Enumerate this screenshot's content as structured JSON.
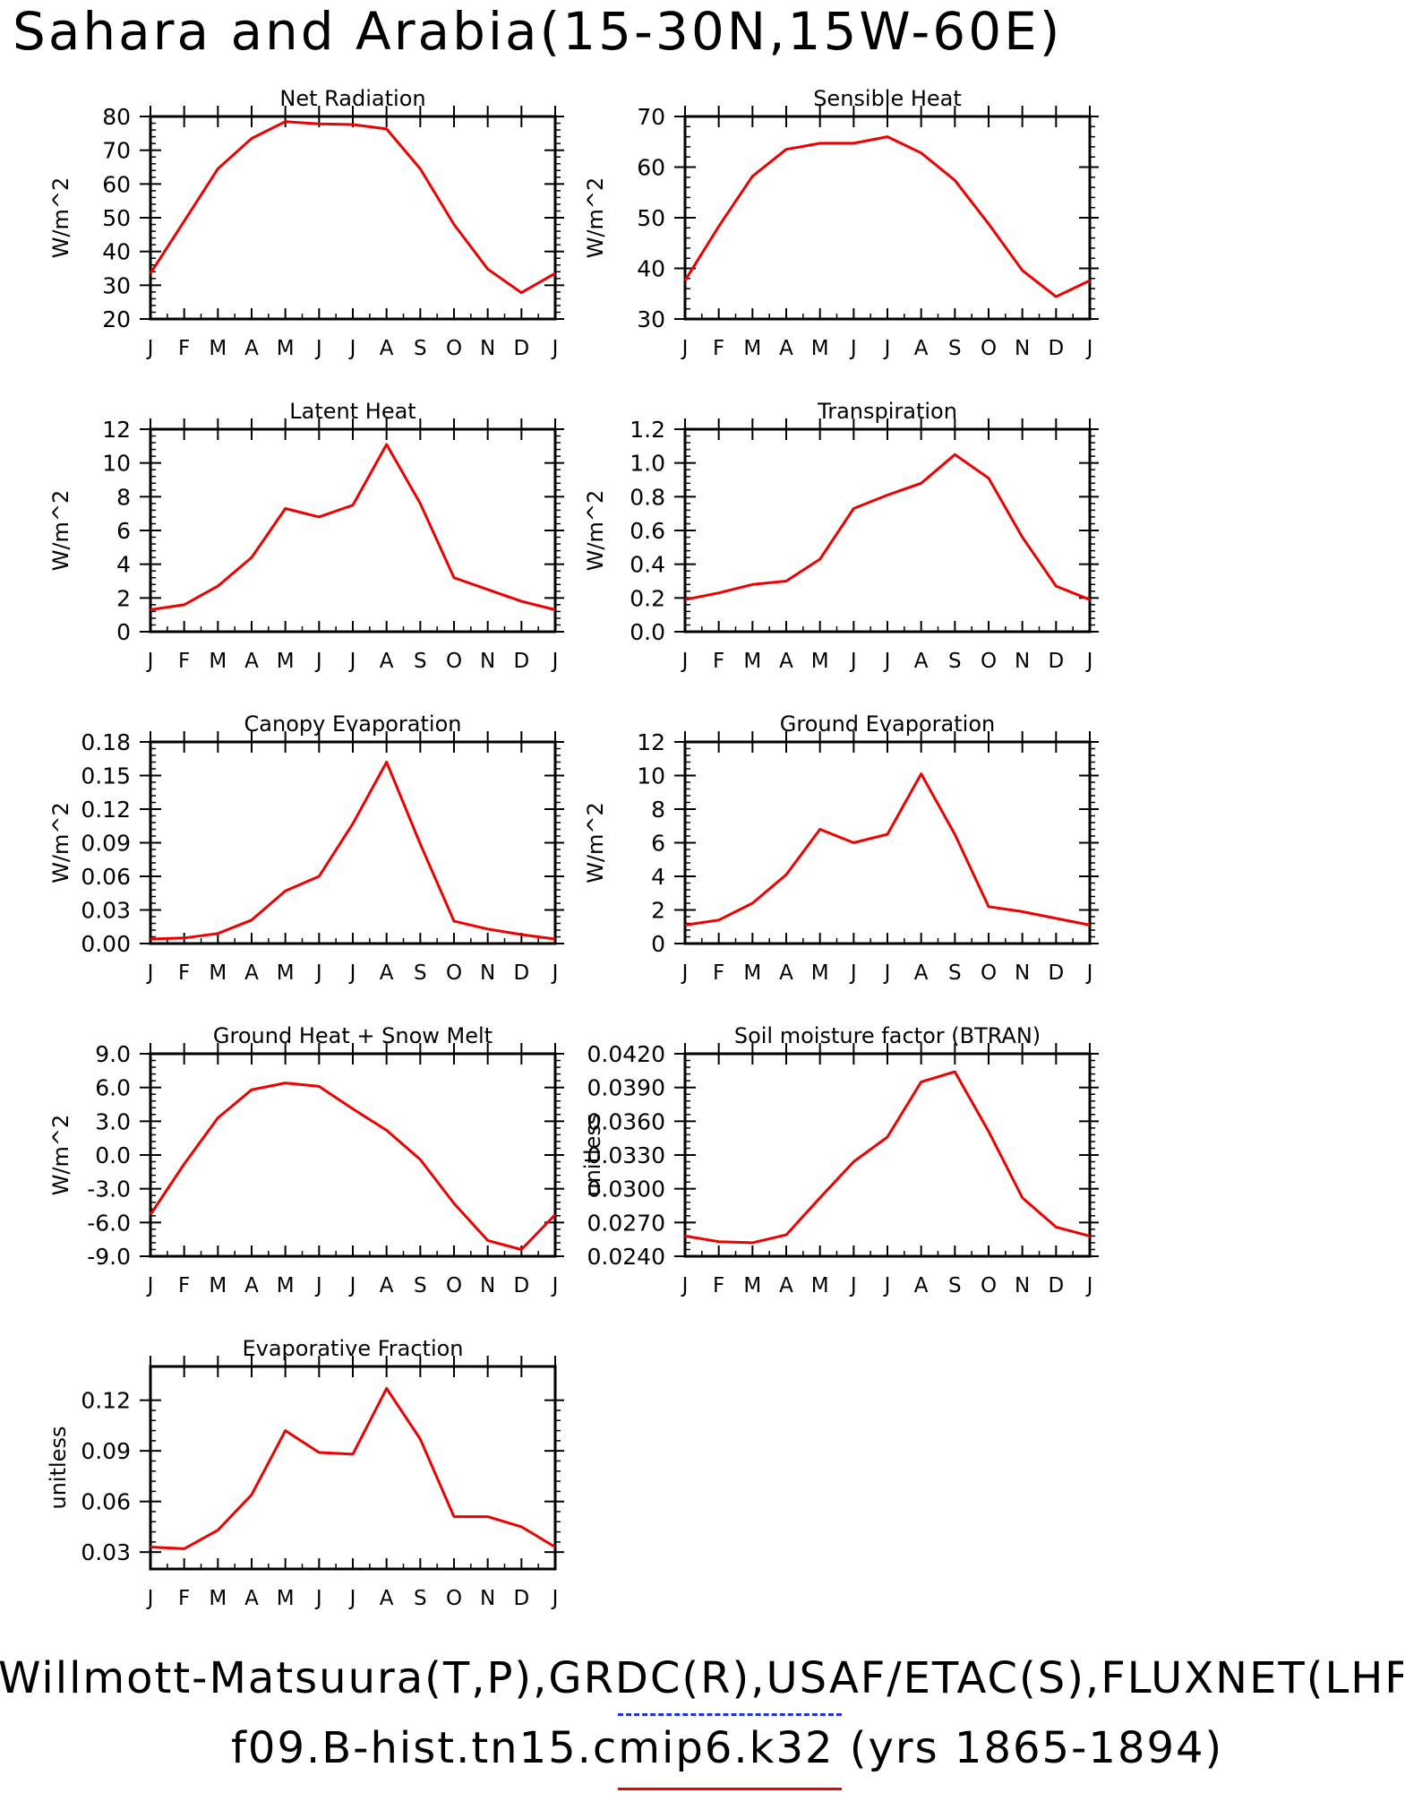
{
  "title": "Sahara and Arabia(15-30N,15W-60E)",
  "footer": {
    "line1": "Willmott-Matsuura(T,P),GRDC(R),USAF/ETAC(S),FLUXNET(LHF,GPP)",
    "line2": "f09.B-hist.tn15.cmip6.k32 (yrs 1865-1894)"
  },
  "colors": {
    "series": "#ee0000",
    "obs_legend": "#2233dd"
  },
  "chart_data": [
    {
      "type": "line",
      "title": "Net Radiation",
      "ylabel": "W/m^2",
      "x": [
        "J",
        "F",
        "M",
        "A",
        "M",
        "J",
        "J",
        "A",
        "S",
        "O",
        "N",
        "D",
        "J"
      ],
      "ylim": [
        20,
        80
      ],
      "yticks": [
        20,
        30,
        40,
        50,
        60,
        70,
        80
      ],
      "yticklabels": [
        "20",
        "30",
        "40",
        "50",
        "60",
        "70",
        "80"
      ],
      "values": [
        33.5,
        49,
        64.5,
        73.5,
        78.5,
        77.8,
        77.6,
        76.3,
        64.5,
        48,
        34.8,
        27.8,
        33.5
      ]
    },
    {
      "type": "line",
      "title": "Sensible Heat",
      "ylabel": "W/m^2",
      "x": [
        "J",
        "F",
        "M",
        "A",
        "M",
        "J",
        "J",
        "A",
        "S",
        "O",
        "N",
        "D",
        "J"
      ],
      "ylim": [
        30,
        70
      ],
      "yticks": [
        30,
        40,
        50,
        60,
        70
      ],
      "yticklabels": [
        "30",
        "40",
        "50",
        "60",
        "70"
      ],
      "values": [
        37.6,
        48.3,
        58.2,
        63.5,
        64.7,
        64.7,
        66.0,
        62.8,
        57.4,
        48.8,
        39.6,
        34.4,
        37.6
      ]
    },
    {
      "type": "line",
      "title": "Latent Heat",
      "ylabel": "W/m^2",
      "x": [
        "J",
        "F",
        "M",
        "A",
        "M",
        "J",
        "J",
        "A",
        "S",
        "O",
        "N",
        "D",
        "J"
      ],
      "ylim": [
        0,
        12
      ],
      "yticks": [
        0,
        2,
        4,
        6,
        8,
        10,
        12
      ],
      "yticklabels": [
        "0",
        "2",
        "4",
        "6",
        "8",
        "10",
        "12"
      ],
      "values": [
        1.3,
        1.6,
        2.7,
        4.4,
        7.3,
        6.8,
        7.5,
        11.1,
        7.6,
        3.2,
        2.5,
        1.8,
        1.3
      ]
    },
    {
      "type": "line",
      "title": "Transpiration",
      "ylabel": "W/m^2",
      "x": [
        "J",
        "F",
        "M",
        "A",
        "M",
        "J",
        "J",
        "A",
        "S",
        "O",
        "N",
        "D",
        "J"
      ],
      "ylim": [
        0,
        1.2
      ],
      "yticks": [
        0,
        0.2,
        0.4,
        0.6,
        0.8,
        1.0,
        1.2
      ],
      "yticklabels": [
        "0.0",
        "0.2",
        "0.4",
        "0.6",
        "0.8",
        "1.0",
        "1.2"
      ],
      "values": [
        0.19,
        0.23,
        0.28,
        0.3,
        0.43,
        0.73,
        0.81,
        0.88,
        1.05,
        0.91,
        0.56,
        0.27,
        0.19
      ]
    },
    {
      "type": "line",
      "title": "Canopy Evaporation",
      "ylabel": "W/m^2",
      "x": [
        "J",
        "F",
        "M",
        "A",
        "M",
        "J",
        "J",
        "A",
        "S",
        "O",
        "N",
        "D",
        "J"
      ],
      "ylim": [
        0,
        0.18
      ],
      "yticks": [
        0,
        0.03,
        0.06,
        0.09,
        0.12,
        0.15,
        0.18
      ],
      "yticklabels": [
        "0.00",
        "0.03",
        "0.06",
        "0.09",
        "0.12",
        "0.15",
        "0.18"
      ],
      "values": [
        0.004,
        0.005,
        0.009,
        0.021,
        0.047,
        0.06,
        0.107,
        0.162,
        0.089,
        0.02,
        0.013,
        0.008,
        0.004
      ]
    },
    {
      "type": "line",
      "title": "Ground Evaporation",
      "ylabel": "W/m^2",
      "x": [
        "J",
        "F",
        "M",
        "A",
        "M",
        "J",
        "J",
        "A",
        "S",
        "O",
        "N",
        "D",
        "J"
      ],
      "ylim": [
        0,
        12
      ],
      "yticks": [
        0,
        2,
        4,
        6,
        8,
        10,
        12
      ],
      "yticklabels": [
        "0",
        "2",
        "4",
        "6",
        "8",
        "10",
        "12"
      ],
      "values": [
        1.1,
        1.4,
        2.4,
        4.1,
        6.8,
        6.0,
        6.5,
        10.1,
        6.5,
        2.2,
        1.9,
        1.5,
        1.1
      ]
    },
    {
      "type": "line",
      "title": "Ground Heat + Snow Melt",
      "ylabel": "W/m^2",
      "x": [
        "J",
        "F",
        "M",
        "A",
        "M",
        "J",
        "J",
        "A",
        "S",
        "O",
        "N",
        "D",
        "J"
      ],
      "ylim": [
        -9,
        9
      ],
      "yticks": [
        -9,
        -6,
        -3,
        0,
        3,
        6,
        9
      ],
      "yticklabels": [
        "-9.0",
        "-6.0",
        "-3.0",
        "0.0",
        "3.0",
        "6.0",
        "9.0"
      ],
      "values": [
        -5.3,
        -0.8,
        3.3,
        5.8,
        6.4,
        6.1,
        4.1,
        2.2,
        -0.4,
        -4.3,
        -7.6,
        -8.4,
        -5.3
      ]
    },
    {
      "type": "line",
      "title": "Soil moisture factor (BTRAN)",
      "ylabel": "unitless",
      "x": [
        "J",
        "F",
        "M",
        "A",
        "M",
        "J",
        "J",
        "A",
        "S",
        "O",
        "N",
        "D",
        "J"
      ],
      "ylim": [
        0.024,
        0.042
      ],
      "yticks": [
        0.024,
        0.027,
        0.03,
        0.033,
        0.036,
        0.039,
        0.042
      ],
      "yticklabels": [
        "0.0240",
        "0.0270",
        "0.0300",
        "0.0330",
        "0.0360",
        "0.0390",
        "0.0420"
      ],
      "values": [
        0.0258,
        0.0253,
        0.0252,
        0.0259,
        0.0292,
        0.0324,
        0.0346,
        0.0395,
        0.0404,
        0.0351,
        0.0292,
        0.0266,
        0.0258
      ]
    },
    {
      "type": "line",
      "title": "Evaporative Fraction",
      "ylabel": "unitless",
      "x": [
        "J",
        "F",
        "M",
        "A",
        "M",
        "J",
        "J",
        "A",
        "S",
        "O",
        "N",
        "D",
        "J"
      ],
      "ylim": [
        0.02,
        0.14
      ],
      "yticks": [
        0.03,
        0.06,
        0.09,
        0.12
      ],
      "yticklabels": [
        "0.03",
        "0.06",
        "0.09",
        "0.12"
      ],
      "values": [
        0.033,
        0.032,
        0.043,
        0.064,
        0.102,
        0.089,
        0.088,
        0.127,
        0.097,
        0.051,
        0.051,
        0.045,
        0.033
      ]
    }
  ]
}
